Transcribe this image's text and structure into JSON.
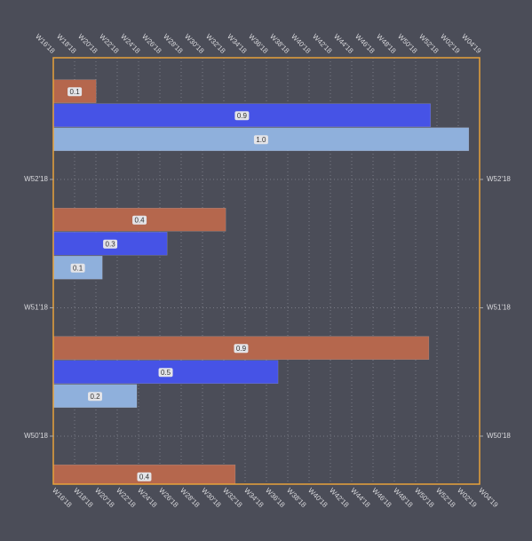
{
  "chart_data": {
    "type": "hbar",
    "y": [
      52.5,
      51.5,
      50.5,
      49.5
    ],
    "series": [
      {
        "color": "#b5674d",
        "values": [
          0.103,
          0.415,
          0.904,
          0.438
        ],
        "value_labels": [
          "0.1",
          "0.4",
          "0.9",
          "0.4"
        ]
      },
      {
        "color": "#4653e6",
        "values": [
          0.908,
          0.274,
          0.541,
          null
        ],
        "value_labels": [
          "0.9",
          "0.3",
          "0.5",
          null
        ]
      },
      {
        "color": "#8fb0dc",
        "values": [
          1.0,
          0.118,
          0.201,
          null
        ],
        "value_labels": [
          "1.0",
          "0.1",
          "0.2",
          null
        ]
      }
    ],
    "xlim": [
      0,
      1.026
    ],
    "xticks": [
      {
        "value": 0,
        "label": "W16'18"
      },
      {
        "value": 0.0513,
        "label": "W18'18"
      },
      {
        "value": 0.1026,
        "label": "W20'18"
      },
      {
        "value": 0.1539,
        "label": "W22'18"
      },
      {
        "value": 0.2052,
        "label": "W24'18"
      },
      {
        "value": 0.2565,
        "label": "W26'18"
      },
      {
        "value": 0.3078,
        "label": "W28'18"
      },
      {
        "value": 0.3591,
        "label": "W30'18"
      },
      {
        "value": 0.4104,
        "label": "W32'18"
      },
      {
        "value": 0.4617,
        "label": "W34'18"
      },
      {
        "value": 0.513,
        "label": "W36'18"
      },
      {
        "value": 0.5643,
        "label": "W38'18"
      },
      {
        "value": 0.6156,
        "label": "W40'18"
      },
      {
        "value": 0.6669,
        "label": "W42'18"
      },
      {
        "value": 0.7182,
        "label": "W44'18"
      },
      {
        "value": 0.7695,
        "label": "W46'18"
      },
      {
        "value": 0.8208,
        "label": "W48'18"
      },
      {
        "value": 0.8721,
        "label": "W50'18"
      },
      {
        "value": 0.9234,
        "label": "W52'18"
      },
      {
        "value": 0.9747,
        "label": "W02'19"
      },
      {
        "value": 1.026,
        "label": "W04'19"
      }
    ],
    "ylim": [
      49.626,
      52.948
    ],
    "yticks": [
      {
        "value": 50,
        "label": "W50'18"
      },
      {
        "value": 51,
        "label": "W51'18"
      },
      {
        "value": 52,
        "label": "W52'18"
      }
    ],
    "grid": true
  }
}
